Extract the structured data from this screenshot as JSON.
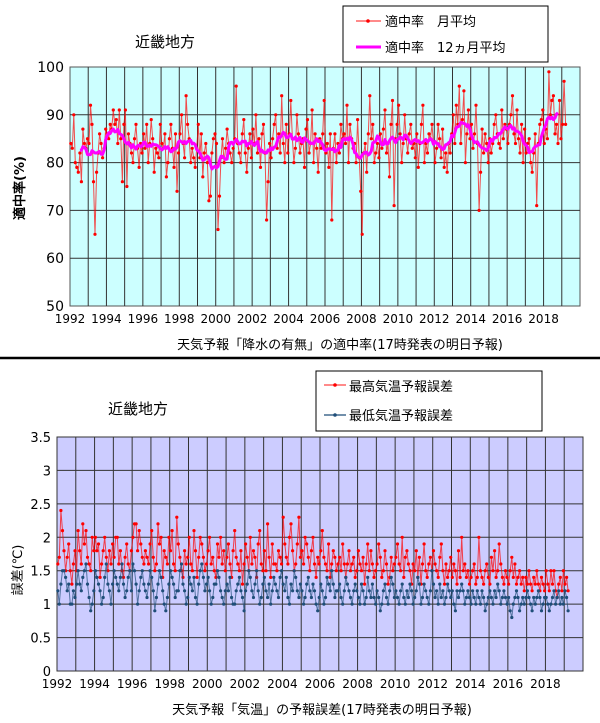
{
  "chart_data": [
    {
      "type": "line",
      "title": "近畿地方",
      "xlabel": "天気予報「降水の有無」の適中率(17時発表の明日予報)",
      "ylabel": "適中率(%)",
      "ylim": [
        50,
        100
      ],
      "yticks": [
        "100",
        "90",
        "80",
        "70",
        "60",
        "50"
      ],
      "xlim": [
        1992,
        2020
      ],
      "xticks": [
        "1992",
        "1994",
        "1996",
        "1998",
        "2000",
        "2002",
        "2004",
        "2006",
        "2008",
        "2010",
        "2012",
        "2014",
        "2016",
        "2018"
      ],
      "grid": true,
      "legend_position": "top-right",
      "x_start": "1992-01",
      "x_frequency": "monthly",
      "background": "#ccffff",
      "series": [
        {
          "name": "適中率　月平均",
          "color": "#ff0000",
          "values": [
            84,
            83,
            90,
            80,
            79,
            78,
            82,
            76,
            87,
            84,
            83,
            85,
            84,
            92,
            88,
            76,
            65,
            78,
            82,
            86,
            84,
            81,
            83,
            87,
            86,
            85,
            88,
            87,
            91,
            88,
            89,
            84,
            91,
            85,
            76,
            88,
            91,
            75,
            86,
            84,
            82,
            80,
            85,
            88,
            83,
            79,
            84,
            82,
            86,
            83,
            88,
            80,
            84,
            89,
            85,
            78,
            83,
            82,
            81,
            88,
            84,
            83,
            86,
            77,
            80,
            85,
            88,
            83,
            79,
            86,
            74,
            82,
            86,
            90,
            84,
            81,
            94,
            88,
            85,
            80,
            83,
            81,
            79,
            83,
            88,
            81,
            86,
            77,
            82,
            84,
            80,
            72,
            73,
            82,
            85,
            86,
            84,
            66,
            73,
            81,
            85,
            80,
            83,
            87,
            84,
            82,
            80,
            83,
            85,
            96,
            84,
            82,
            80,
            86,
            89,
            82,
            78,
            83,
            86,
            81,
            87,
            84,
            90,
            82,
            85,
            79,
            86,
            88,
            82,
            68,
            76,
            84,
            81,
            85,
            88,
            90,
            83,
            86,
            82,
            94,
            84,
            80,
            88,
            82,
            86,
            93,
            85,
            80,
            83,
            90,
            86,
            82,
            84,
            85,
            79,
            87,
            89,
            82,
            84,
            91,
            80,
            86,
            83,
            78,
            85,
            83,
            86,
            93,
            82,
            84,
            79,
            86,
            68,
            83,
            86,
            80,
            84,
            82,
            88,
            85,
            86,
            84,
            92,
            80,
            88,
            85,
            83,
            84,
            80,
            89,
            81,
            74,
            65,
            82,
            84,
            78,
            86,
            94,
            85,
            88,
            80,
            82,
            84,
            81,
            86,
            83,
            87,
            91,
            82,
            84,
            77,
            88,
            93,
            71,
            85,
            88,
            92,
            86,
            80,
            84,
            90,
            85,
            82,
            86,
            88,
            83,
            84,
            81,
            86,
            79,
            84,
            88,
            92,
            80,
            84,
            82,
            86,
            85,
            88,
            84,
            80,
            83,
            88,
            85,
            81,
            87,
            79,
            82,
            78,
            84,
            82,
            86,
            90,
            84,
            92,
            88,
            96,
            84,
            89,
            95,
            80,
            86,
            91,
            85,
            88,
            83,
            86,
            92,
            84,
            70,
            78,
            87,
            82,
            86,
            84,
            80,
            85,
            82,
            84,
            88,
            90,
            86,
            84,
            83,
            91,
            85,
            88,
            87,
            84,
            88,
            90,
            94,
            86,
            84,
            91,
            85,
            82,
            88,
            80,
            87,
            82,
            84,
            85,
            80,
            78,
            82,
            86,
            71,
            84,
            88,
            89,
            91,
            84,
            87,
            85,
            99,
            90,
            93,
            94,
            86,
            88,
            84,
            93,
            85,
            88,
            97,
            88
          ]
        },
        {
          "name": "適中率　12ヵ月平均",
          "color": "#ff00ff",
          "derived_from": "12-month moving average of 月平均"
        }
      ]
    },
    {
      "type": "line",
      "title": "近畿地方",
      "xlabel": "天気予報「気温」の予報誤差(17時発表の明日予報)",
      "ylabel": "誤差(℃)",
      "ylim": [
        0,
        3.5
      ],
      "yticks": [
        "3.5",
        "3",
        "2.5",
        "2",
        "1.5",
        "1",
        "0.5",
        "0"
      ],
      "xlim": [
        1992,
        2020
      ],
      "xticks": [
        "1992",
        "1994",
        "1996",
        "1998",
        "2000",
        "2002",
        "2004",
        "2006",
        "2008",
        "2010",
        "2012",
        "2014",
        "2016",
        "2018"
      ],
      "grid": true,
      "legend_position": "top-right",
      "x_start": "1992-01",
      "x_frequency": "monthly",
      "background": "#ccccff",
      "series": [
        {
          "name": "最高気温予報誤差",
          "color": "#ff0000",
          "values": [
            1.6,
            1.7,
            2.4,
            2.1,
            1.8,
            1.5,
            1.7,
            1.9,
            1.5,
            1.3,
            1.6,
            1.8,
            1.5,
            2.1,
            1.8,
            1.6,
            2.2,
            1.9,
            2.1,
            1.7,
            1.6,
            1.5,
            2.0,
            1.8,
            2.0,
            1.8,
            1.9,
            1.4,
            1.6,
            1.8,
            2.0,
            1.7,
            1.5,
            1.8,
            1.6,
            1.9,
            1.7,
            2.0,
            2.0,
            1.6,
            1.8,
            1.5,
            1.4,
            1.7,
            1.9,
            1.6,
            1.5,
            1.8,
            2.0,
            2.2,
            2.2,
            1.8,
            2.1,
            1.9,
            1.7,
            1.6,
            1.8,
            1.7,
            1.6,
            1.9,
            2.1,
            1.7,
            1.5,
            1.6,
            2.2,
            1.9,
            2.0,
            1.4,
            1.8,
            1.7,
            1.6,
            2.0,
            1.8,
            2.1,
            1.6,
            1.5,
            2.3,
            1.9,
            1.7,
            1.5,
            1.4,
            1.8,
            1.6,
            1.7,
            2.0,
            1.6,
            1.5,
            2.1,
            1.8,
            1.4,
            1.7,
            2.0,
            1.9,
            1.7,
            1.5,
            1.6,
            1.8,
            2.0,
            1.6,
            1.7,
            1.5,
            1.4,
            1.9,
            1.7,
            2.0,
            1.6,
            1.8,
            1.5,
            1.7,
            1.9,
            1.6,
            1.4,
            1.8,
            2.1,
            1.7,
            1.6,
            1.5,
            1.8,
            1.3,
            1.6,
            1.9,
            1.7,
            1.5,
            2.0,
            1.6,
            1.8,
            1.7,
            1.4,
            1.9,
            2.1,
            1.6,
            1.5,
            1.8,
            1.5,
            2.2,
            1.7,
            1.4,
            1.9,
            1.6,
            1.6,
            1.5,
            1.8,
            1.7,
            1.6,
            2.3,
            1.9,
            1.7,
            1.6,
            2.0,
            2.2,
            1.8,
            1.5,
            1.6,
            1.9,
            2.3,
            1.7,
            1.8,
            1.6,
            2.0,
            1.9,
            1.7,
            1.5,
            1.8,
            2.0,
            1.6,
            1.4,
            1.7,
            1.6,
            1.8,
            2.1,
            1.7,
            1.6,
            1.5,
            1.9,
            1.4,
            1.6,
            1.8,
            1.7,
            1.5,
            1.6,
            1.7,
            1.5,
            1.9,
            1.6,
            1.4,
            1.6,
            1.8,
            1.5,
            1.6,
            1.7,
            1.4,
            1.5,
            1.8,
            1.6,
            1.5,
            1.7,
            1.3,
            1.6,
            1.9,
            1.5,
            1.8,
            1.6,
            1.4,
            1.5,
            1.6,
            1.9,
            1.7,
            1.4,
            1.5,
            1.8,
            1.6,
            1.3,
            1.4,
            1.7,
            1.5,
            1.6,
            1.7,
            1.9,
            1.6,
            1.5,
            2.0,
            1.4,
            1.7,
            1.8,
            1.6,
            1.5,
            1.3,
            1.6,
            1.5,
            1.8,
            1.4,
            1.7,
            1.3,
            1.6,
            1.9,
            1.5,
            1.4,
            1.6,
            1.7,
            1.5,
            1.8,
            1.6,
            1.5,
            1.4,
            1.7,
            1.9,
            1.5,
            1.3,
            1.6,
            1.4,
            1.5,
            1.7,
            1.4,
            1.6,
            1.5,
            1.3,
            1.8,
            1.4,
            2.0,
            1.5,
            1.6,
            1.4,
            1.5,
            1.3,
            1.4,
            1.5,
            1.6,
            1.3,
            1.4,
            2.0,
            1.5,
            1.4,
            1.3,
            1.5,
            1.6,
            1.4,
            1.3,
            1.7,
            1.5,
            1.8,
            1.4,
            1.5,
            1.9,
            1.6,
            1.4,
            1.3,
            1.5,
            1.4,
            1.3,
            1.5,
            1.7,
            1.4,
            1.6,
            1.3,
            1.4,
            1.5,
            1.3,
            1.4,
            1.2,
            1.4,
            1.3,
            1.5,
            1.3,
            1.2,
            1.4,
            1.3,
            1.5,
            1.3,
            1.2,
            1.4,
            1.3,
            1.2,
            1.5,
            1.3,
            1.2,
            1.5,
            1.3,
            1.5,
            1.2,
            1.1,
            1.3,
            1.4,
            1.2,
            1.5,
            1.3,
            1.4,
            1.2
          ]
        },
        {
          "name": "最低気温予報誤差",
          "color": "#1f4e79",
          "values": [
            1.2,
            1.0,
            1.3,
            1.5,
            1.5,
            1.4,
            1.2,
            1.3,
            1.0,
            1.0,
            1.2,
            1.1,
            1.3,
            1.5,
            1.3,
            1.2,
            1.4,
            1.5,
            1.6,
            1.3,
            1.1,
            0.9,
            1.0,
            1.2,
            1.5,
            1.4,
            1.3,
            1.2,
            1.0,
            1.1,
            1.4,
            1.6,
            1.3,
            1.2,
            1.0,
            1.3,
            1.5,
            1.4,
            1.3,
            1.2,
            1.4,
            1.6,
            1.3,
            1.1,
            1.2,
            1.4,
            1.5,
            1.2,
            1.6,
            1.5,
            1.3,
            1.0,
            1.2,
            1.4,
            1.5,
            1.3,
            1.2,
            1.1,
            1.3,
            1.5,
            1.4,
            1.2,
            0.9,
            1.1,
            1.3,
            1.5,
            1.4,
            1.2,
            1.0,
            0.9,
            1.1,
            1.3,
            1.5,
            1.4,
            1.3,
            1.1,
            1.2,
            1.2,
            1.5,
            1.6,
            1.3,
            1.2,
            1.0,
            1.1,
            1.4,
            1.3,
            1.2,
            1.4,
            1.1,
            1.0,
            1.3,
            1.5,
            1.6,
            1.4,
            1.2,
            1.3,
            1.4,
            1.2,
            1.0,
            1.1,
            1.3,
            1.3,
            1.5,
            1.4,
            1.2,
            1.1,
            1.0,
            1.2,
            1.3,
            1.2,
            1.4,
            1.1,
            1.0,
            1.0,
            1.2,
            1.3,
            1.4,
            1.2,
            1.1,
            0.9,
            1.2,
            1.3,
            1.5,
            1.4,
            1.2,
            1.1,
            1.3,
            1.5,
            1.2,
            1.0,
            1.1,
            1.3,
            1.4,
            1.2,
            1.1,
            1.3,
            1.0,
            1.2,
            1.4,
            1.3,
            1.2,
            1.1,
            1.4,
            1.5,
            1.3,
            1.2,
            1.4,
            1.1,
            1.0,
            1.3,
            1.2,
            1.5,
            1.4,
            1.2,
            1.1,
            1.3,
            1.2,
            1.0,
            1.1,
            1.3,
            1.4,
            1.2,
            1.1,
            1.3,
            1.2,
            1.0,
            0.9,
            1.1,
            1.3,
            1.2,
            1.0,
            1.1,
            1.4,
            1.3,
            1.2,
            1.5,
            1.3,
            1.1,
            1.2,
            1.2,
            1.3,
            1.1,
            1.0,
            1.2,
            1.4,
            1.3,
            1.2,
            1.1,
            1.0,
            1.2,
            1.3,
            1.2,
            1.1,
            1.0,
            1.3,
            1.2,
            1.0,
            1.1,
            1.4,
            1.2,
            1.1,
            1.3,
            1.1,
            1.0,
            1.2,
            1.1,
            0.9,
            1.0,
            1.2,
            1.3,
            1.1,
            1.0,
            1.2,
            1.4,
            1.3,
            1.1,
            1.2,
            1.1,
            1.0,
            1.2,
            1.3,
            1.1,
            1.0,
            1.2,
            1.1,
            1.3,
            1.2,
            1.0,
            1.1,
            1.2,
            1.4,
            1.3,
            1.0,
            1.1,
            1.3,
            1.2,
            1.1,
            1.0,
            1.2,
            1.5,
            1.3,
            1.1,
            1.2,
            1.0,
            1.3,
            1.1,
            1.2,
            1.0,
            1.1,
            1.3,
            1.2,
            1.1,
            1.2,
            1.0,
            0.9,
            1.2,
            1.1,
            1.2,
            1.3,
            1.2,
            1.0,
            1.1,
            1.2,
            1.1,
            1.0,
            1.2,
            1.1,
            1.0,
            1.2,
            1.1,
            1.0,
            1.2,
            1.1,
            0.9,
            1.0,
            1.1,
            1.2,
            1.1,
            1.0,
            1.2,
            1.1,
            1.3,
            1.2,
            1.0,
            1.1,
            1.2,
            1.1,
            1.0,
            1.1,
            0.9,
            0.8,
            1.0,
            1.1,
            1.2,
            1.1,
            0.9,
            1.0,
            1.1,
            1.0,
            1.1,
            1.2,
            1.1,
            1.0,
            0.9,
            1.1,
            1.0,
            1.1,
            1.2,
            1.1,
            0.9,
            1.0,
            1.1,
            1.1,
            1.0,
            0.9,
            1.0,
            1.1,
            1.2,
            1.0,
            1.1,
            1.2,
            1.0,
            1.1,
            1.0,
            1.2,
            1.1,
            0.9
          ]
        }
      ]
    }
  ]
}
